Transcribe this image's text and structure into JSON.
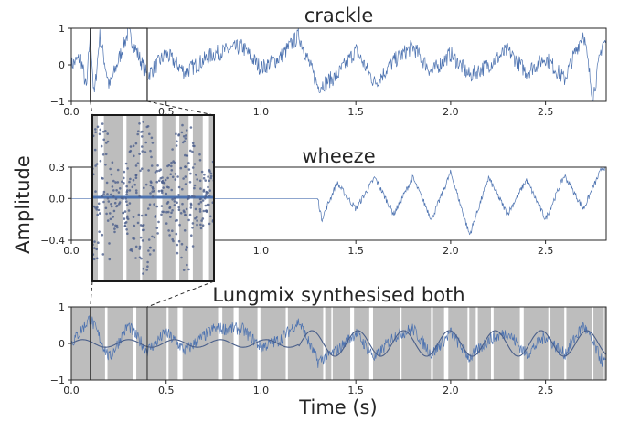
{
  "chart_data": [
    {
      "type": "line",
      "title": "crackle",
      "xlim": [
        0.0,
        2.82
      ],
      "ylim": [
        -1,
        1
      ],
      "xticks": [
        "0.0",
        "0.5",
        "1.0",
        "1.5",
        "2.0",
        "2.5"
      ],
      "yticks": [
        "1",
        "0",
        "−1"
      ],
      "grid": false,
      "series": [
        {
          "color": "#4c72b0",
          "x": [
            0.0,
            0.05,
            0.08,
            0.1,
            0.12,
            0.15,
            0.2,
            0.3,
            0.4,
            0.5,
            0.6,
            0.75,
            0.9,
            1.0,
            1.1,
            1.2,
            1.3,
            1.4,
            1.5,
            1.6,
            1.7,
            1.8,
            1.9,
            2.0,
            2.1,
            2.2,
            2.3,
            2.4,
            2.5,
            2.6,
            2.7,
            2.75,
            2.8
          ],
          "y": [
            0.0,
            0.2,
            -0.7,
            0.9,
            -0.9,
            0.8,
            -0.6,
            0.9,
            -0.3,
            0.3,
            -0.2,
            0.3,
            0.5,
            -0.1,
            0.2,
            0.8,
            -0.6,
            -0.3,
            0.4,
            -0.5,
            0.1,
            0.5,
            -0.2,
            0.3,
            -0.3,
            0.0,
            0.4,
            -0.2,
            0.2,
            -0.4,
            0.9,
            -0.9,
            0.6
          ]
        }
      ]
    },
    {
      "type": "line",
      "title": "wheeze",
      "xlim": [
        0.0,
        2.82
      ],
      "ylim": [
        -0.4,
        0.3
      ],
      "xticks": [
        "0.0",
        "0.5",
        "1.0",
        "1.5",
        "2.0",
        "2.5"
      ],
      "yticks": [
        "0.3",
        "0.0",
        "−0.4"
      ],
      "grid": false,
      "series": [
        {
          "color": "#4c72b0",
          "x": [
            0.0,
            1.3,
            1.32,
            1.4,
            1.5,
            1.6,
            1.7,
            1.8,
            1.9,
            2.0,
            2.1,
            2.2,
            2.3,
            2.4,
            2.5,
            2.6,
            2.7,
            2.8
          ],
          "y": [
            0.0,
            0.0,
            -0.2,
            0.15,
            -0.1,
            0.2,
            -0.15,
            0.2,
            -0.2,
            0.25,
            -0.35,
            0.2,
            -0.15,
            0.18,
            -0.2,
            0.22,
            -0.1,
            0.3
          ]
        }
      ]
    },
    {
      "type": "line",
      "title": "Lungmix synthesised both",
      "xlim": [
        0.0,
        2.82
      ],
      "ylim": [
        -1,
        1
      ],
      "xticks": [
        "0.0",
        "0.5",
        "1.0",
        "1.5",
        "2.0",
        "2.5"
      ],
      "yticks": [
        "1",
        "0",
        "−1"
      ],
      "grid": false,
      "series": [
        {
          "color": "#4c72b0",
          "x": [
            0.0,
            0.1,
            0.2,
            0.3,
            0.4,
            0.5,
            0.6,
            0.75,
            0.9,
            1.0,
            1.1,
            1.2,
            1.3,
            1.4,
            1.5,
            1.6,
            1.7,
            1.8,
            1.9,
            2.0,
            2.1,
            2.2,
            2.3,
            2.4,
            2.5,
            2.6,
            2.7,
            2.8
          ],
          "y": [
            0.0,
            0.7,
            -0.4,
            0.5,
            -0.2,
            0.3,
            -0.2,
            0.4,
            0.4,
            -0.1,
            0.1,
            0.6,
            -0.5,
            -0.2,
            0.3,
            -0.4,
            0.2,
            0.4,
            -0.3,
            0.3,
            -0.4,
            0.1,
            0.3,
            -0.3,
            0.2,
            -0.3,
            0.5,
            -0.5
          ]
        }
      ]
    }
  ],
  "ylabel": "Amplitude",
  "xlabel": "Time (s)",
  "zoom_inset": {
    "of_panel": "crackle",
    "xrange": [
      0.1,
      0.4
    ]
  }
}
